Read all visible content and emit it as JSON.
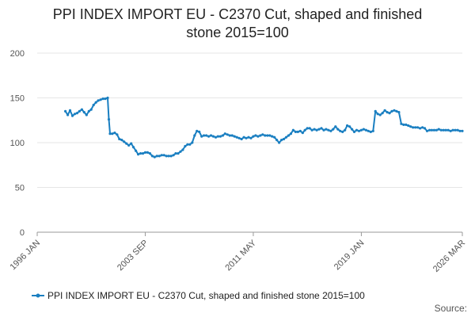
{
  "chart_data": {
    "type": "line",
    "title_lines": [
      "PPI INDEX IMPORT EU - C2370 Cut, shaped and finished",
      "stone 2015=100"
    ],
    "source_label": "Source:",
    "ylim": [
      0,
      200
    ],
    "yticks": [
      0,
      50,
      100,
      150,
      200
    ],
    "xlim": [
      "1996-01",
      "2026-03"
    ],
    "xticks": [
      "1996 JAN",
      "2003 SEP",
      "2011 MAY",
      "2019 JAN",
      "2026 MAR"
    ],
    "grid": "horizontal",
    "legend_position": "bottom",
    "colors": {
      "series": "#1a7fc1",
      "grid": "#e6e6e6",
      "axis": "#999999"
    },
    "series": [
      {
        "name": "PPI INDEX IMPORT EU - C2370 Cut, shaped and finished stone 2015=100",
        "points": [
          [
            "1998-01",
            135
          ],
          [
            "1998-03",
            131
          ],
          [
            "1998-05",
            136
          ],
          [
            "1998-07",
            130
          ],
          [
            "1998-09",
            132
          ],
          [
            "1998-11",
            133
          ],
          [
            "1999-01",
            135
          ],
          [
            "1999-03",
            137
          ],
          [
            "1999-05",
            134
          ],
          [
            "1999-07",
            131
          ],
          [
            "1999-09",
            135
          ],
          [
            "1999-11",
            137
          ],
          [
            "2000-01",
            142
          ],
          [
            "2000-03",
            145
          ],
          [
            "2000-05",
            147
          ],
          [
            "2000-07",
            148
          ],
          [
            "2000-09",
            149
          ],
          [
            "2000-11",
            149
          ],
          [
            "2001-01",
            150
          ],
          [
            "2001-02",
            126
          ],
          [
            "2001-03",
            110
          ],
          [
            "2001-05",
            110
          ],
          [
            "2001-07",
            111
          ],
          [
            "2001-09",
            109
          ],
          [
            "2001-11",
            104
          ],
          [
            "2002-01",
            103
          ],
          [
            "2002-03",
            101
          ],
          [
            "2002-05",
            99
          ],
          [
            "2002-07",
            97
          ],
          [
            "2002-09",
            99
          ],
          [
            "2002-11",
            95
          ],
          [
            "2003-01",
            91
          ],
          [
            "2003-03",
            87
          ],
          [
            "2003-05",
            88
          ],
          [
            "2003-07",
            88
          ],
          [
            "2003-09",
            89
          ],
          [
            "2003-11",
            89
          ],
          [
            "2004-01",
            88
          ],
          [
            "2004-03",
            85
          ],
          [
            "2004-05",
            84
          ],
          [
            "2004-07",
            85
          ],
          [
            "2004-09",
            85
          ],
          [
            "2004-11",
            86
          ],
          [
            "2005-01",
            86
          ],
          [
            "2005-03",
            85
          ],
          [
            "2005-05",
            85
          ],
          [
            "2005-07",
            85
          ],
          [
            "2005-09",
            86
          ],
          [
            "2005-11",
            88
          ],
          [
            "2006-01",
            88
          ],
          [
            "2006-03",
            90
          ],
          [
            "2006-05",
            92
          ],
          [
            "2006-07",
            96
          ],
          [
            "2006-09",
            98
          ],
          [
            "2006-11",
            98
          ],
          [
            "2007-01",
            100
          ],
          [
            "2007-03",
            108
          ],
          [
            "2007-05",
            113
          ],
          [
            "2007-07",
            112
          ],
          [
            "2007-09",
            107
          ],
          [
            "2007-11",
            108
          ],
          [
            "2008-01",
            108
          ],
          [
            "2008-03",
            107
          ],
          [
            "2008-05",
            108
          ],
          [
            "2008-07",
            107
          ],
          [
            "2008-09",
            106
          ],
          [
            "2008-11",
            107
          ],
          [
            "2009-01",
            107
          ],
          [
            "2009-03",
            108
          ],
          [
            "2009-05",
            110
          ],
          [
            "2009-07",
            109
          ],
          [
            "2009-09",
            108
          ],
          [
            "2009-11",
            108
          ],
          [
            "2010-01",
            107
          ],
          [
            "2010-03",
            106
          ],
          [
            "2010-05",
            105
          ],
          [
            "2010-07",
            104
          ],
          [
            "2010-09",
            106
          ],
          [
            "2010-11",
            105
          ],
          [
            "2011-01",
            106
          ],
          [
            "2011-03",
            105
          ],
          [
            "2011-05",
            107
          ],
          [
            "2011-07",
            108
          ],
          [
            "2011-09",
            107
          ],
          [
            "2011-11",
            108
          ],
          [
            "2012-01",
            109
          ],
          [
            "2012-03",
            108
          ],
          [
            "2012-05",
            108
          ],
          [
            "2012-07",
            108
          ],
          [
            "2012-09",
            107
          ],
          [
            "2012-11",
            106
          ],
          [
            "2013-01",
            103
          ],
          [
            "2013-03",
            100
          ],
          [
            "2013-05",
            103
          ],
          [
            "2013-07",
            104
          ],
          [
            "2013-09",
            106
          ],
          [
            "2013-11",
            108
          ],
          [
            "2014-01",
            110
          ],
          [
            "2014-03",
            114
          ],
          [
            "2014-05",
            112
          ],
          [
            "2014-07",
            112
          ],
          [
            "2014-09",
            113
          ],
          [
            "2014-11",
            111
          ],
          [
            "2015-01",
            114
          ],
          [
            "2015-03",
            116
          ],
          [
            "2015-05",
            116
          ],
          [
            "2015-07",
            114
          ],
          [
            "2015-09",
            115
          ],
          [
            "2015-11",
            114
          ],
          [
            "2016-01",
            115
          ],
          [
            "2016-03",
            116
          ],
          [
            "2016-05",
            114
          ],
          [
            "2016-07",
            115
          ],
          [
            "2016-09",
            114
          ],
          [
            "2016-11",
            113
          ],
          [
            "2017-01",
            115
          ],
          [
            "2017-03",
            118
          ],
          [
            "2017-05",
            115
          ],
          [
            "2017-07",
            113
          ],
          [
            "2017-09",
            112
          ],
          [
            "2017-11",
            114
          ],
          [
            "2018-01",
            119
          ],
          [
            "2018-03",
            118
          ],
          [
            "2018-05",
            115
          ],
          [
            "2018-07",
            112
          ],
          [
            "2018-09",
            114
          ],
          [
            "2018-11",
            113
          ],
          [
            "2019-01",
            114
          ],
          [
            "2019-03",
            115
          ],
          [
            "2019-05",
            114
          ],
          [
            "2019-07",
            113
          ],
          [
            "2019-09",
            112
          ],
          [
            "2019-11",
            113
          ],
          [
            "2020-01",
            135
          ],
          [
            "2020-03",
            132
          ],
          [
            "2020-05",
            131
          ],
          [
            "2020-07",
            133
          ],
          [
            "2020-09",
            136
          ],
          [
            "2020-11",
            134
          ],
          [
            "2021-01",
            133
          ],
          [
            "2021-03",
            135
          ],
          [
            "2021-05",
            136
          ],
          [
            "2021-07",
            135
          ],
          [
            "2021-09",
            134
          ],
          [
            "2021-11",
            121
          ],
          [
            "2022-01",
            120
          ],
          [
            "2022-03",
            120
          ],
          [
            "2022-05",
            119
          ],
          [
            "2022-07",
            118
          ],
          [
            "2022-09",
            117
          ],
          [
            "2022-11",
            117
          ],
          [
            "2023-01",
            117
          ],
          [
            "2023-03",
            116
          ],
          [
            "2023-05",
            117
          ],
          [
            "2023-07",
            116
          ],
          [
            "2023-09",
            113
          ],
          [
            "2023-11",
            114
          ],
          [
            "2024-01",
            114
          ],
          [
            "2024-03",
            114
          ],
          [
            "2024-05",
            114
          ],
          [
            "2024-07",
            115
          ],
          [
            "2024-09",
            114
          ],
          [
            "2024-11",
            114
          ],
          [
            "2025-01",
            114
          ],
          [
            "2025-03",
            114
          ],
          [
            "2025-05",
            113
          ],
          [
            "2025-07",
            114
          ],
          [
            "2025-09",
            114
          ],
          [
            "2025-11",
            114
          ],
          [
            "2026-01",
            113
          ],
          [
            "2026-03",
            113
          ]
        ]
      }
    ]
  }
}
